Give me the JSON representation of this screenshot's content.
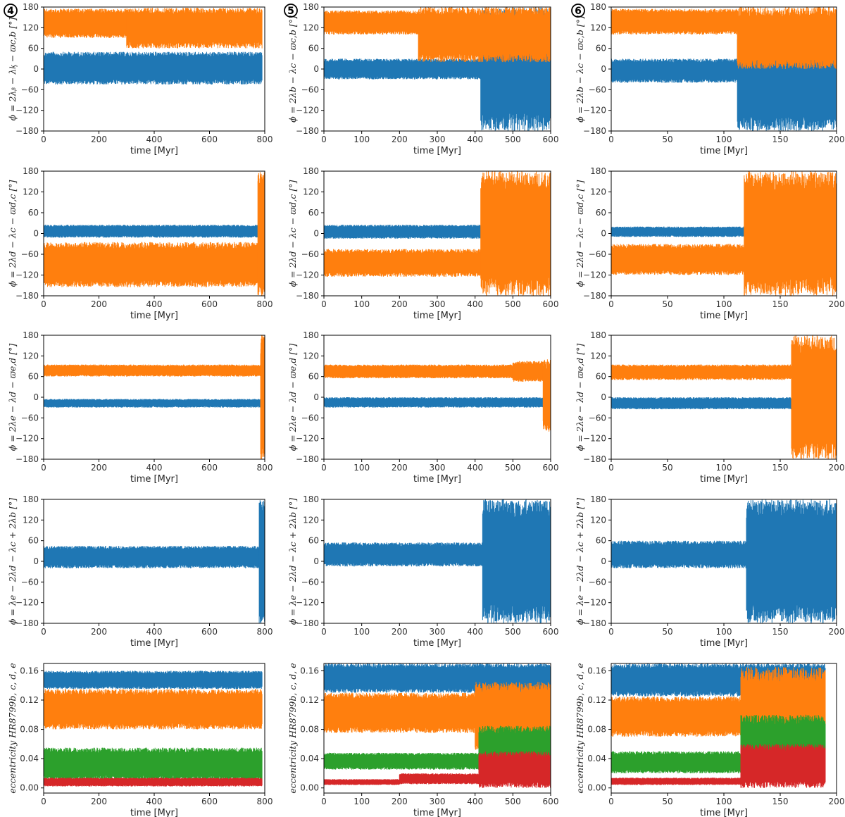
{
  "chart_data": [
    {
      "type": "line",
      "title": "",
      "column_label": "4",
      "xlabel": "time [Myr]",
      "ylabel": "ϕ = 2λᵦ − λᶄ − ϖc,b [°]",
      "xlim": [
        0,
        800
      ],
      "ylim": [
        -180,
        180
      ],
      "x_ticks": [
        "0",
        "200",
        "400",
        "600",
        "800"
      ],
      "y_ticks": [
        "180",
        "120",
        "60",
        "0",
        "−60",
        "−120",
        "−180"
      ],
      "series": [
        {
          "name": "blue",
          "color": "#1f77b4",
          "segments": [
            {
              "x0": 0,
              "x1": 790,
              "low": -45,
              "high": 50
            }
          ]
        },
        {
          "name": "orange",
          "color": "#ff7f0e",
          "segments": [
            {
              "x0": 0,
              "x1": 300,
              "low": 90,
              "high": 175
            },
            {
              "x0": 300,
              "x1": 790,
              "low": 60,
              "high": 178
            }
          ]
        }
      ]
    },
    {
      "type": "line",
      "title": "",
      "column_label": "5",
      "xlabel": "time [Myr]",
      "ylabel": "ϕ = 2λb − λc − ϖc,b [°]",
      "xlim": [
        0,
        600
      ],
      "ylim": [
        -180,
        180
      ],
      "x_ticks": [
        "0",
        "100",
        "200",
        "300",
        "400",
        "500",
        "600"
      ],
      "y_ticks": [
        "180",
        "120",
        "60",
        "0",
        "−60",
        "−120",
        "−180"
      ],
      "series": [
        {
          "name": "blue",
          "color": "#1f77b4",
          "segments": [
            {
              "x0": 0,
              "x1": 415,
              "low": -30,
              "high": 30
            },
            {
              "x0": 415,
              "x1": 600,
              "low": -180,
              "high": 180
            }
          ]
        },
        {
          "name": "orange",
          "color": "#ff7f0e",
          "segments": [
            {
              "x0": 0,
              "x1": 250,
              "low": 100,
              "high": 170
            },
            {
              "x0": 250,
              "x1": 600,
              "low": 20,
              "high": 180
            }
          ]
        }
      ]
    },
    {
      "type": "line",
      "title": "",
      "column_label": "6",
      "xlabel": "time [Myr]",
      "ylabel": "ϕ = 2λb − λc − ϖc,b [°]",
      "xlim": [
        0,
        200
      ],
      "ylim": [
        -180,
        180
      ],
      "x_ticks": [
        "0",
        "50",
        "100",
        "150",
        "200"
      ],
      "y_ticks": [
        "180",
        "120",
        "60",
        "0",
        "−60",
        "−120",
        "−180"
      ],
      "series": [
        {
          "name": "blue",
          "color": "#1f77b4",
          "segments": [
            {
              "x0": 0,
              "x1": 112,
              "low": -40,
              "high": 30
            },
            {
              "x0": 112,
              "x1": 200,
              "low": -180,
              "high": 100
            }
          ]
        },
        {
          "name": "orange",
          "color": "#ff7f0e",
          "segments": [
            {
              "x0": 0,
              "x1": 112,
              "low": 100,
              "high": 175
            },
            {
              "x0": 112,
              "x1": 200,
              "low": 0,
              "high": 180
            }
          ]
        }
      ]
    },
    {
      "type": "line",
      "title": "",
      "xlabel": "time [Myr]",
      "ylabel": "ϕ = 2λd − λc − ϖd,c [°]",
      "xlim": [
        0,
        800
      ],
      "ylim": [
        -180,
        180
      ],
      "x_ticks": [
        "0",
        "200",
        "400",
        "600",
        "800"
      ],
      "y_ticks": [
        "180",
        "120",
        "60",
        "0",
        "−60",
        "−120",
        "−180"
      ],
      "series": [
        {
          "name": "blue",
          "color": "#1f77b4",
          "segments": [
            {
              "x0": 0,
              "x1": 775,
              "low": -12,
              "high": 25
            }
          ]
        },
        {
          "name": "orange",
          "color": "#ff7f0e",
          "segments": [
            {
              "x0": 0,
              "x1": 775,
              "low": -155,
              "high": -25
            },
            {
              "x0": 775,
              "x1": 800,
              "low": -180,
              "high": 180
            }
          ]
        }
      ]
    },
    {
      "type": "line",
      "title": "",
      "xlabel": "time [Myr]",
      "ylabel": "ϕ = 2λd − λc − ϖd,c [°]",
      "xlim": [
        0,
        600
      ],
      "ylim": [
        -180,
        180
      ],
      "x_ticks": [
        "0",
        "100",
        "200",
        "300",
        "400",
        "500",
        "600"
      ],
      "y_ticks": [
        "180",
        "120",
        "60",
        "0",
        "−60",
        "−120",
        "−180"
      ],
      "series": [
        {
          "name": "blue",
          "color": "#1f77b4",
          "segments": [
            {
              "x0": 0,
              "x1": 415,
              "low": -15,
              "high": 25
            }
          ]
        },
        {
          "name": "orange",
          "color": "#ff7f0e",
          "segments": [
            {
              "x0": 0,
              "x1": 415,
              "low": -125,
              "high": -45
            },
            {
              "x0": 415,
              "x1": 600,
              "low": -180,
              "high": 180
            }
          ]
        }
      ]
    },
    {
      "type": "line",
      "title": "",
      "xlabel": "time [Myr]",
      "ylabel": "ϕ = 2λd − λc − ϖd,c [°]",
      "xlim": [
        0,
        200
      ],
      "ylim": [
        -180,
        180
      ],
      "x_ticks": [
        "0",
        "50",
        "100",
        "150",
        "200"
      ],
      "y_ticks": [
        "180",
        "120",
        "60",
        "0",
        "−60",
        "−120",
        "−180"
      ],
      "series": [
        {
          "name": "blue",
          "color": "#1f77b4",
          "segments": [
            {
              "x0": 0,
              "x1": 118,
              "low": -10,
              "high": 20
            }
          ]
        },
        {
          "name": "orange",
          "color": "#ff7f0e",
          "segments": [
            {
              "x0": 0,
              "x1": 118,
              "low": -120,
              "high": -30
            },
            {
              "x0": 118,
              "x1": 200,
              "low": -180,
              "high": 180
            }
          ]
        }
      ]
    },
    {
      "type": "line",
      "title": "",
      "xlabel": "time [Myr]",
      "ylabel": "ϕ = 2λe − λd − ϖe,d [°]",
      "xlim": [
        0,
        800
      ],
      "ylim": [
        -180,
        180
      ],
      "x_ticks": [
        "0",
        "200",
        "400",
        "600",
        "800"
      ],
      "y_ticks": [
        "180",
        "120",
        "60",
        "0",
        "−60",
        "−120",
        "−180"
      ],
      "series": [
        {
          "name": "blue",
          "color": "#1f77b4",
          "segments": [
            {
              "x0": 0,
              "x1": 785,
              "low": -30,
              "high": -5
            }
          ]
        },
        {
          "name": "orange",
          "color": "#ff7f0e",
          "segments": [
            {
              "x0": 0,
              "x1": 785,
              "low": 60,
              "high": 95
            },
            {
              "x0": 785,
              "x1": 800,
              "low": -180,
              "high": 180
            }
          ]
        }
      ]
    },
    {
      "type": "line",
      "title": "",
      "xlabel": "time [Myr]",
      "ylabel": "ϕ = 2λe − λd − ϖe,d [°]",
      "xlim": [
        0,
        600
      ],
      "ylim": [
        -180,
        180
      ],
      "x_ticks": [
        "0",
        "100",
        "200",
        "300",
        "400",
        "500",
        "600"
      ],
      "y_ticks": [
        "180",
        "120",
        "60",
        "0",
        "−60",
        "−120",
        "−180"
      ],
      "series": [
        {
          "name": "blue",
          "color": "#1f77b4",
          "segments": [
            {
              "x0": 0,
              "x1": 580,
              "low": -30,
              "high": 0
            }
          ]
        },
        {
          "name": "orange",
          "color": "#ff7f0e",
          "segments": [
            {
              "x0": 0,
              "x1": 500,
              "low": 55,
              "high": 95
            },
            {
              "x0": 500,
              "x1": 580,
              "low": 45,
              "high": 105
            },
            {
              "x0": 580,
              "x1": 600,
              "low": -100,
              "high": 110
            }
          ]
        }
      ]
    },
    {
      "type": "line",
      "title": "",
      "xlabel": "time [Myr]",
      "ylabel": "ϕ = 2λe − λd − ϖe,d [°]",
      "xlim": [
        0,
        200
      ],
      "ylim": [
        -180,
        180
      ],
      "x_ticks": [
        "0",
        "50",
        "100",
        "150",
        "200"
      ],
      "y_ticks": [
        "180",
        "120",
        "60",
        "0",
        "−60",
        "−120",
        "−180"
      ],
      "series": [
        {
          "name": "blue",
          "color": "#1f77b4",
          "segments": [
            {
              "x0": 0,
              "x1": 160,
              "low": -35,
              "high": 0
            }
          ]
        },
        {
          "name": "orange",
          "color": "#ff7f0e",
          "segments": [
            {
              "x0": 0,
              "x1": 160,
              "low": 50,
              "high": 95
            },
            {
              "x0": 160,
              "x1": 200,
              "low": -180,
              "high": 180
            }
          ]
        }
      ]
    },
    {
      "type": "line",
      "title": "",
      "xlabel": "time [Myr]",
      "ylabel": "ϕ = λe − 2λd − λc + 2λb [°]",
      "xlim": [
        0,
        800
      ],
      "ylim": [
        -180,
        180
      ],
      "x_ticks": [
        "0",
        "200",
        "400",
        "600",
        "800"
      ],
      "y_ticks": [
        "180",
        "120",
        "60",
        "0",
        "−60",
        "−120",
        "−180"
      ],
      "series": [
        {
          "name": "blue",
          "color": "#1f77b4",
          "segments": [
            {
              "x0": 0,
              "x1": 780,
              "low": -20,
              "high": 45
            },
            {
              "x0": 780,
              "x1": 800,
              "low": -180,
              "high": 180
            }
          ]
        }
      ]
    },
    {
      "type": "line",
      "title": "",
      "xlabel": "time [Myr]",
      "ylabel": "ϕ = λe − 2λd − λc + 2λb [°]",
      "xlim": [
        0,
        600
      ],
      "ylim": [
        -180,
        180
      ],
      "x_ticks": [
        "0",
        "100",
        "200",
        "300",
        "400",
        "500",
        "600"
      ],
      "y_ticks": [
        "180",
        "120",
        "60",
        "0",
        "−60",
        "−120",
        "−180"
      ],
      "series": [
        {
          "name": "blue",
          "color": "#1f77b4",
          "segments": [
            {
              "x0": 0,
              "x1": 420,
              "low": -15,
              "high": 55
            },
            {
              "x0": 420,
              "x1": 600,
              "low": -180,
              "high": 180
            }
          ]
        }
      ]
    },
    {
      "type": "line",
      "title": "",
      "xlabel": "time [Myr]",
      "ylabel": "ϕ = λe − 2λd − λc + 2λb [°]",
      "xlim": [
        0,
        200
      ],
      "ylim": [
        -180,
        180
      ],
      "x_ticks": [
        "0",
        "50",
        "100",
        "150",
        "200"
      ],
      "y_ticks": [
        "180",
        "120",
        "60",
        "0",
        "−60",
        "−120",
        "−180"
      ],
      "series": [
        {
          "name": "blue",
          "color": "#1f77b4",
          "segments": [
            {
              "x0": 0,
              "x1": 120,
              "low": -20,
              "high": 60
            },
            {
              "x0": 120,
              "x1": 200,
              "low": -180,
              "high": 180
            }
          ]
        }
      ]
    },
    {
      "type": "line",
      "title": "",
      "xlabel": "time [Myr]",
      "ylabel": "eccentricity HR8799b, c, d, e",
      "xlim": [
        0,
        800
      ],
      "ylim": [
        -0.007,
        0.17
      ],
      "x_ticks": [
        "0",
        "200",
        "400",
        "600",
        "800"
      ],
      "y_ticks": [
        "0.16",
        "0.12",
        "0.08",
        "0.04",
        "0.00"
      ],
      "series": [
        {
          "name": "b",
          "color": "#1f77b4",
          "segments": [
            {
              "x0": 0,
              "x1": 790,
              "low": 0.135,
              "high": 0.16
            }
          ]
        },
        {
          "name": "c",
          "color": "#ff7f0e",
          "segments": [
            {
              "x0": 0,
              "x1": 790,
              "low": 0.08,
              "high": 0.135
            }
          ]
        },
        {
          "name": "d",
          "color": "#2ca02c",
          "segments": [
            {
              "x0": 0,
              "x1": 790,
              "low": 0.01,
              "high": 0.055
            }
          ]
        },
        {
          "name": "e",
          "color": "#d62728",
          "segments": [
            {
              "x0": 0,
              "x1": 790,
              "low": 0.002,
              "high": 0.014
            }
          ]
        }
      ]
    },
    {
      "type": "line",
      "title": "",
      "xlabel": "time [Myr]",
      "ylabel": "eccentricity HR8799b, c, d, e",
      "xlim": [
        0,
        600
      ],
      "ylim": [
        -0.007,
        0.17
      ],
      "x_ticks": [
        "0",
        "100",
        "200",
        "300",
        "400",
        "500",
        "600"
      ],
      "y_ticks": [
        "0.16",
        "0.12",
        "0.08",
        "0.04",
        "0.00"
      ],
      "series": [
        {
          "name": "b",
          "color": "#1f77b4",
          "segments": [
            {
              "x0": 0,
              "x1": 600,
              "low": 0.13,
              "high": 0.17
            }
          ]
        },
        {
          "name": "c",
          "color": "#ff7f0e",
          "segments": [
            {
              "x0": 0,
              "x1": 400,
              "low": 0.075,
              "high": 0.13
            },
            {
              "x0": 400,
              "x1": 600,
              "low": 0.05,
              "high": 0.145
            }
          ]
        },
        {
          "name": "d",
          "color": "#2ca02c",
          "segments": [
            {
              "x0": 0,
              "x1": 410,
              "low": 0.025,
              "high": 0.048
            },
            {
              "x0": 410,
              "x1": 600,
              "low": 0.015,
              "high": 0.085
            }
          ]
        },
        {
          "name": "e",
          "color": "#d62728",
          "segments": [
            {
              "x0": 0,
              "x1": 200,
              "low": 0.004,
              "high": 0.012
            },
            {
              "x0": 200,
              "x1": 410,
              "low": 0.005,
              "high": 0.02
            },
            {
              "x0": 410,
              "x1": 600,
              "low": 0.0,
              "high": 0.05
            }
          ]
        }
      ]
    },
    {
      "type": "line",
      "title": "",
      "xlabel": "time [Myr]",
      "ylabel": "eccentricity HR8799b, c, d, e",
      "xlim": [
        0,
        200
      ],
      "ylim": [
        -0.007,
        0.17
      ],
      "x_ticks": [
        "0",
        "50",
        "100",
        "150",
        "200"
      ],
      "y_ticks": [
        "0.16",
        "0.12",
        "0.08",
        "0.04",
        "0.00"
      ],
      "series": [
        {
          "name": "b",
          "color": "#1f77b4",
          "segments": [
            {
              "x0": 0,
              "x1": 190,
              "low": 0.125,
              "high": 0.17
            }
          ]
        },
        {
          "name": "c",
          "color": "#ff7f0e",
          "segments": [
            {
              "x0": 0,
              "x1": 115,
              "low": 0.07,
              "high": 0.125
            },
            {
              "x0": 115,
              "x1": 190,
              "low": 0.03,
              "high": 0.165
            }
          ]
        },
        {
          "name": "d",
          "color": "#2ca02c",
          "segments": [
            {
              "x0": 0,
              "x1": 115,
              "low": 0.02,
              "high": 0.05
            },
            {
              "x0": 115,
              "x1": 190,
              "low": 0.01,
              "high": 0.1
            }
          ]
        },
        {
          "name": "e",
          "color": "#d62728",
          "segments": [
            {
              "x0": 0,
              "x1": 115,
              "low": 0.004,
              "high": 0.014
            },
            {
              "x0": 115,
              "x1": 190,
              "low": 0.0,
              "high": 0.06
            }
          ]
        }
      ]
    }
  ]
}
